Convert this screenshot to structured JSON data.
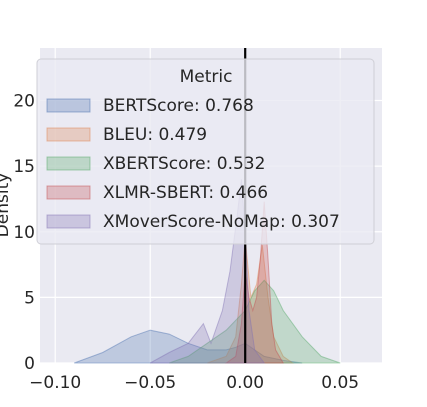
{
  "chart_data": {
    "type": "area",
    "title": "",
    "xlabel": "",
    "ylabel": "Density",
    "xlim": [
      -0.108,
      0.072
    ],
    "ylim": [
      0,
      24
    ],
    "grid": true,
    "legend": {
      "title": "Metric",
      "placement": "top"
    },
    "x_ticks": [
      {
        "value": -0.1,
        "label": "−0.10"
      },
      {
        "value": -0.05,
        "label": "−0.05"
      },
      {
        "value": 0.0,
        "label": "0.00"
      },
      {
        "value": 0.05,
        "label": "0.05"
      }
    ],
    "y_ticks": [
      {
        "value": 0,
        "label": "0"
      },
      {
        "value": 5,
        "label": "5"
      },
      {
        "value": 10,
        "label": "10"
      },
      {
        "value": 15,
        "label": "15"
      },
      {
        "value": 20,
        "label": "20"
      }
    ],
    "reference_line": {
      "x": 0.0,
      "color": "#000000"
    },
    "series": [
      {
        "name": "BERTScore: 0.768",
        "color": "#4c72b0",
        "x": [
          -0.09,
          -0.075,
          -0.06,
          -0.05,
          -0.04,
          -0.03,
          -0.02,
          -0.01,
          -0.005,
          0.0,
          0.005,
          0.01,
          0.02,
          0.03
        ],
        "y": [
          0.0,
          0.8,
          2.0,
          2.5,
          2.2,
          1.5,
          1.0,
          1.0,
          1.2,
          1.5,
          1.0,
          0.5,
          0.2,
          0.0
        ]
      },
      {
        "name": "BLEU: 0.479",
        "color": "#dd8452",
        "x": [
          -0.02,
          -0.01,
          -0.005,
          -0.002,
          0.0,
          0.003,
          0.006,
          0.009,
          0.012,
          0.015,
          0.02,
          0.025
        ],
        "y": [
          0.0,
          0.5,
          2.0,
          6.0,
          9.5,
          5.0,
          6.0,
          9.0,
          5.0,
          2.0,
          0.5,
          0.0
        ]
      },
      {
        "name": "XBERTScore: 0.532",
        "color": "#55a868",
        "x": [
          -0.04,
          -0.03,
          -0.02,
          -0.01,
          0.0,
          0.005,
          0.01,
          0.015,
          0.02,
          0.03,
          0.04,
          0.05
        ],
        "y": [
          0.0,
          0.5,
          1.5,
          2.5,
          4.0,
          5.5,
          6.3,
          5.5,
          4.0,
          2.0,
          0.5,
          0.0
        ]
      },
      {
        "name": "XLMR-SBERT: 0.466",
        "color": "#c44e52",
        "x": [
          -0.01,
          -0.005,
          -0.002,
          0.0,
          0.002,
          0.004,
          0.006,
          0.008,
          0.01,
          0.012,
          0.014,
          0.016,
          0.02
        ],
        "y": [
          0.0,
          0.5,
          3.0,
          7.0,
          5.0,
          4.0,
          5.0,
          8.0,
          12.3,
          8.0,
          3.0,
          1.0,
          0.0
        ]
      },
      {
        "name": "XMoverScore-NoMap: 0.307",
        "color": "#8172b3",
        "x": [
          -0.05,
          -0.04,
          -0.03,
          -0.022,
          -0.018,
          -0.012,
          -0.008,
          -0.004,
          -0.002,
          0.0,
          0.002,
          0.005,
          0.01
        ],
        "y": [
          0.0,
          0.8,
          1.5,
          3.0,
          1.5,
          4.0,
          7.0,
          11.5,
          14.0,
          10.0,
          4.0,
          1.0,
          0.0
        ]
      }
    ]
  }
}
